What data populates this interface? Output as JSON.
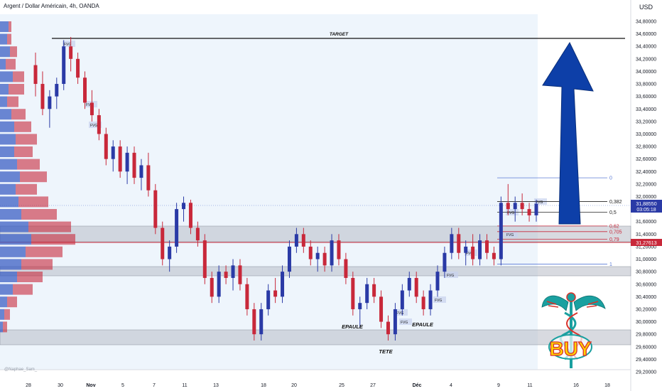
{
  "header": {
    "title": "Argent / Dollar Américain, 4h, OANDA",
    "currency": "USD"
  },
  "watermark": "@Naphae_Sam_",
  "chart_data": {
    "type": "candlestick",
    "title": "Argent / Dollar Américain, 4h, OANDA",
    "ylabel": "USD",
    "ylim": [
      29.1,
      34.85
    ],
    "y_ticks": [
      "34,80000",
      "34,60000",
      "34,40000",
      "34,20000",
      "34,00000",
      "33,80000",
      "33,60000",
      "33,40000",
      "33,20000",
      "33,00000",
      "32,80000",
      "32,60000",
      "32,40000",
      "32,20000",
      "32,00000",
      "31,80000",
      "31,60000",
      "31,40000",
      "31,20000",
      "31,00000",
      "30,80000",
      "30,60000",
      "30,40000",
      "30,20000",
      "30,00000",
      "29,80000",
      "29,60000",
      "29,40000",
      "29,20000"
    ],
    "x_ticks": [
      "28",
      "30",
      "Nov",
      "5",
      "7",
      "11",
      "13",
      "18",
      "20",
      "25",
      "27",
      "Déc",
      "4",
      "9",
      "11",
      "16",
      "18"
    ],
    "price_label": {
      "value": "31,88550",
      "countdown": "03:05:18",
      "y": 31.8855
    },
    "red_level_label": {
      "value": "31,27613",
      "y": 31.27613
    },
    "candles": [
      {
        "o": 34.1,
        "h": 34.3,
        "l": 33.6,
        "c": 33.8
      },
      {
        "o": 33.8,
        "h": 34.0,
        "l": 33.3,
        "c": 33.4
      },
      {
        "o": 33.4,
        "h": 33.7,
        "l": 33.1,
        "c": 33.6
      },
      {
        "o": 33.6,
        "h": 33.9,
        "l": 33.4,
        "c": 33.8
      },
      {
        "o": 33.8,
        "h": 34.5,
        "l": 33.7,
        "c": 34.4
      },
      {
        "o": 34.4,
        "h": 34.55,
        "l": 34.0,
        "c": 34.2
      },
      {
        "o": 34.2,
        "h": 34.3,
        "l": 33.8,
        "c": 33.9
      },
      {
        "o": 33.9,
        "h": 34.0,
        "l": 33.4,
        "c": 33.5
      },
      {
        "o": 33.5,
        "h": 33.7,
        "l": 33.2,
        "c": 33.3
      },
      {
        "o": 33.3,
        "h": 33.4,
        "l": 32.9,
        "c": 33.0
      },
      {
        "o": 33.0,
        "h": 33.1,
        "l": 32.5,
        "c": 32.6
      },
      {
        "o": 32.6,
        "h": 32.9,
        "l": 32.4,
        "c": 32.8
      },
      {
        "o": 32.8,
        "h": 32.9,
        "l": 32.3,
        "c": 32.4
      },
      {
        "o": 32.4,
        "h": 32.8,
        "l": 32.2,
        "c": 32.7
      },
      {
        "o": 32.7,
        "h": 32.8,
        "l": 32.2,
        "c": 32.3
      },
      {
        "o": 32.3,
        "h": 32.6,
        "l": 32.1,
        "c": 32.5
      },
      {
        "o": 32.5,
        "h": 32.7,
        "l": 32.0,
        "c": 32.1
      },
      {
        "o": 32.1,
        "h": 32.2,
        "l": 31.4,
        "c": 31.5
      },
      {
        "o": 31.5,
        "h": 31.6,
        "l": 30.9,
        "c": 31.0
      },
      {
        "o": 31.0,
        "h": 31.3,
        "l": 30.8,
        "c": 31.2
      },
      {
        "o": 31.2,
        "h": 31.9,
        "l": 31.1,
        "c": 31.8
      },
      {
        "o": 31.8,
        "h": 32.0,
        "l": 31.6,
        "c": 31.9
      },
      {
        "o": 31.9,
        "h": 31.95,
        "l": 31.4,
        "c": 31.5
      },
      {
        "o": 31.5,
        "h": 31.6,
        "l": 31.2,
        "c": 31.3
      },
      {
        "o": 31.3,
        "h": 31.4,
        "l": 30.6,
        "c": 30.7
      },
      {
        "o": 30.7,
        "h": 30.8,
        "l": 30.3,
        "c": 30.4
      },
      {
        "o": 30.4,
        "h": 30.9,
        "l": 30.3,
        "c": 30.8
      },
      {
        "o": 30.8,
        "h": 30.9,
        "l": 30.6,
        "c": 30.7
      },
      {
        "o": 30.7,
        "h": 31.0,
        "l": 30.5,
        "c": 30.9
      },
      {
        "o": 30.9,
        "h": 31.0,
        "l": 30.5,
        "c": 30.6
      },
      {
        "o": 30.6,
        "h": 30.7,
        "l": 30.1,
        "c": 30.2
      },
      {
        "o": 30.2,
        "h": 30.3,
        "l": 29.7,
        "c": 29.8
      },
      {
        "o": 29.8,
        "h": 30.3,
        "l": 29.7,
        "c": 30.2
      },
      {
        "o": 30.2,
        "h": 30.6,
        "l": 30.1,
        "c": 30.5
      },
      {
        "o": 30.5,
        "h": 30.7,
        "l": 30.3,
        "c": 30.4
      },
      {
        "o": 30.4,
        "h": 30.9,
        "l": 30.3,
        "c": 30.8
      },
      {
        "o": 30.8,
        "h": 31.3,
        "l": 30.7,
        "c": 31.2
      },
      {
        "o": 31.2,
        "h": 31.5,
        "l": 31.1,
        "c": 31.4
      },
      {
        "o": 31.4,
        "h": 31.5,
        "l": 31.1,
        "c": 31.2
      },
      {
        "o": 31.2,
        "h": 31.3,
        "l": 30.9,
        "c": 31.0
      },
      {
        "o": 31.0,
        "h": 31.2,
        "l": 30.8,
        "c": 31.1
      },
      {
        "o": 31.1,
        "h": 31.2,
        "l": 30.8,
        "c": 30.9
      },
      {
        "o": 30.9,
        "h": 31.4,
        "l": 30.8,
        "c": 31.3
      },
      {
        "o": 31.3,
        "h": 31.4,
        "l": 30.9,
        "c": 31.0
      },
      {
        "o": 31.0,
        "h": 31.1,
        "l": 30.6,
        "c": 30.7
      },
      {
        "o": 30.7,
        "h": 30.8,
        "l": 30.1,
        "c": 30.2
      },
      {
        "o": 30.2,
        "h": 30.4,
        "l": 29.9,
        "c": 30.3
      },
      {
        "o": 30.3,
        "h": 30.7,
        "l": 30.2,
        "c": 30.6
      },
      {
        "o": 30.6,
        "h": 30.7,
        "l": 30.3,
        "c": 30.4
      },
      {
        "o": 30.4,
        "h": 30.5,
        "l": 29.9,
        "c": 30.0
      },
      {
        "o": 30.0,
        "h": 30.1,
        "l": 29.7,
        "c": 29.8
      },
      {
        "o": 29.8,
        "h": 30.3,
        "l": 29.7,
        "c": 30.2
      },
      {
        "o": 30.2,
        "h": 30.6,
        "l": 30.1,
        "c": 30.5
      },
      {
        "o": 30.5,
        "h": 30.8,
        "l": 30.4,
        "c": 30.7
      },
      {
        "o": 30.7,
        "h": 30.8,
        "l": 30.3,
        "c": 30.4
      },
      {
        "o": 30.4,
        "h": 30.5,
        "l": 30.1,
        "c": 30.2
      },
      {
        "o": 30.2,
        "h": 30.6,
        "l": 30.1,
        "c": 30.5
      },
      {
        "o": 30.5,
        "h": 30.9,
        "l": 30.4,
        "c": 30.8
      },
      {
        "o": 30.8,
        "h": 31.2,
        "l": 30.7,
        "c": 31.1
      },
      {
        "o": 31.1,
        "h": 31.5,
        "l": 31.0,
        "c": 31.4
      },
      {
        "o": 31.4,
        "h": 31.5,
        "l": 31.0,
        "c": 31.1
      },
      {
        "o": 31.1,
        "h": 31.3,
        "l": 30.9,
        "c": 31.2
      },
      {
        "o": 31.2,
        "h": 31.4,
        "l": 30.9,
        "c": 31.0
      },
      {
        "o": 31.0,
        "h": 31.4,
        "l": 30.9,
        "c": 31.3
      },
      {
        "o": 31.3,
        "h": 31.4,
        "l": 31.0,
        "c": 31.1
      },
      {
        "o": 31.1,
        "h": 31.2,
        "l": 30.9,
        "c": 31.0
      },
      {
        "o": 31.0,
        "h": 32.0,
        "l": 30.9,
        "c": 31.9
      },
      {
        "o": 31.9,
        "h": 32.2,
        "l": 31.7,
        "c": 31.8
      },
      {
        "o": 31.8,
        "h": 32.0,
        "l": 31.6,
        "c": 31.9
      },
      {
        "o": 31.9,
        "h": 32.05,
        "l": 31.7,
        "c": 31.8
      },
      {
        "o": 31.8,
        "h": 31.9,
        "l": 31.6,
        "c": 31.7
      },
      {
        "o": 31.7,
        "h": 31.95,
        "l": 31.6,
        "c": 31.8855
      }
    ]
  },
  "annotations": {
    "target": "TARGET",
    "epaule_left": "EPAULE",
    "tete": "TETE",
    "epaule_right": "EPAULE",
    "fvg": "FVG",
    "buy": "BUY",
    "fib_labels": [
      "0",
      "0,382",
      "0,5",
      "0,62",
      "0,705",
      "0,79",
      "1"
    ],
    "fib_values": [
      32.3,
      31.92,
      31.75,
      31.53,
      31.44,
      31.32,
      30.92
    ]
  },
  "colors": {
    "bull": "#2a3aa6",
    "bear": "#c8283a",
    "arrow": "#0d3fa8",
    "zone": "#b8bcc6",
    "panel": "#eef5fc",
    "buy_text": "#ffd400",
    "caduceus": "#1aa0a0"
  }
}
